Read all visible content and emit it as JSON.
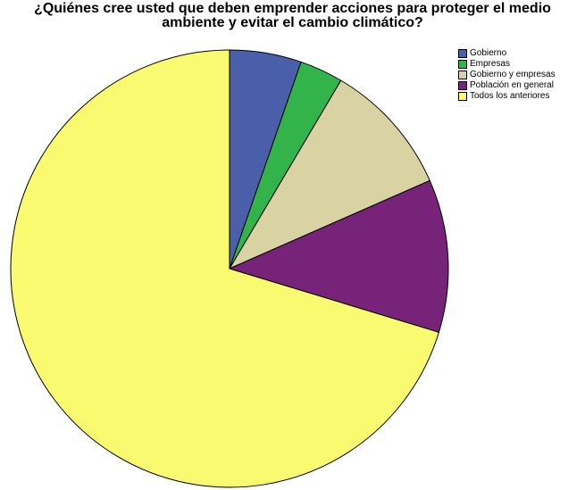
{
  "chart_data": {
    "type": "pie",
    "title": "¿Quiénes cree usted que deben emprender acciones para proteger el medio ambiente y evitar el cambio climático?",
    "title_lines": [
      "¿Quiénes cree usted que deben emprender acciones para proteger el medio",
      "ambiente y evitar el cambio climático?"
    ],
    "legend_position": "top-right",
    "slices": [
      {
        "label": "Gobierno",
        "percent": 5.3,
        "color": "#4a5faa"
      },
      {
        "label": "Empresas",
        "percent": 3.2,
        "color": "#33b44a"
      },
      {
        "label": "Gobierno y empresas",
        "percent": 9.9,
        "color": "#d9d2a2"
      },
      {
        "label": "Población en general",
        "percent": 11.3,
        "color": "#78237a"
      },
      {
        "label": "Todos los anteriores",
        "percent": 70.3,
        "color": "#fafa70"
      }
    ]
  }
}
